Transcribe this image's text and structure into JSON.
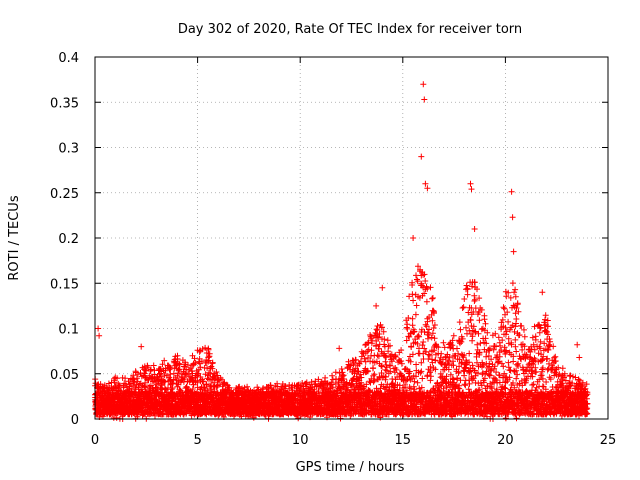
{
  "chart_data": {
    "type": "scatter",
    "title": "Day 302 of 2020, Rate Of TEC Index for receiver torn",
    "xlabel": "GPS time / hours",
    "ylabel": "ROTI / TECUs",
    "xlim": [
      0,
      25
    ],
    "ylim": [
      0,
      0.4
    ],
    "xticks": [
      0,
      5,
      10,
      15,
      20,
      25
    ],
    "xtick_labels": [
      "0",
      "5",
      "10",
      "15",
      "20",
      "25"
    ],
    "yticks": [
      0,
      0.05,
      0.1,
      0.15,
      0.2,
      0.25,
      0.3,
      0.35,
      0.4
    ],
    "ytick_labels": [
      "0",
      "0.05",
      "0.1",
      "0.15",
      "0.2",
      "0.25",
      "0.3",
      "0.35",
      "0.4"
    ],
    "grid": true,
    "marker": "+",
    "series_color": "#ff0000",
    "x_range_hours": [
      0,
      24
    ],
    "baseline_band": [
      0.005,
      0.03
    ],
    "notable_points": [
      {
        "x": 0.15,
        "y": 0.1
      },
      {
        "x": 0.2,
        "y": 0.092
      },
      {
        "x": 2.25,
        "y": 0.08
      },
      {
        "x": 5.0,
        "y": 0.076
      },
      {
        "x": 11.9,
        "y": 0.078
      },
      {
        "x": 13.7,
        "y": 0.125
      },
      {
        "x": 14.0,
        "y": 0.145
      },
      {
        "x": 15.5,
        "y": 0.2
      },
      {
        "x": 15.9,
        "y": 0.29
      },
      {
        "x": 16.0,
        "y": 0.37
      },
      {
        "x": 16.05,
        "y": 0.353
      },
      {
        "x": 16.1,
        "y": 0.26
      },
      {
        "x": 16.2,
        "y": 0.255
      },
      {
        "x": 18.3,
        "y": 0.26
      },
      {
        "x": 18.35,
        "y": 0.254
      },
      {
        "x": 18.5,
        "y": 0.21
      },
      {
        "x": 20.3,
        "y": 0.251
      },
      {
        "x": 20.35,
        "y": 0.223
      },
      {
        "x": 20.4,
        "y": 0.185
      },
      {
        "x": 21.8,
        "y": 0.14
      },
      {
        "x": 23.5,
        "y": 0.082
      },
      {
        "x": 23.6,
        "y": 0.068
      }
    ],
    "envelope": [
      [
        0.0,
        0.04
      ],
      [
        0.5,
        0.035
      ],
      [
        1.0,
        0.045
      ],
      [
        1.5,
        0.04
      ],
      [
        2.0,
        0.05
      ],
      [
        2.5,
        0.055
      ],
      [
        3.0,
        0.055
      ],
      [
        3.5,
        0.065
      ],
      [
        4.0,
        0.065
      ],
      [
        4.5,
        0.06
      ],
      [
        5.0,
        0.07
      ],
      [
        5.5,
        0.075
      ],
      [
        6.0,
        0.045
      ],
      [
        6.5,
        0.035
      ],
      [
        7.0,
        0.032
      ],
      [
        8.0,
        0.03
      ],
      [
        9.0,
        0.035
      ],
      [
        10.0,
        0.035
      ],
      [
        11.0,
        0.04
      ],
      [
        11.5,
        0.045
      ],
      [
        12.0,
        0.055
      ],
      [
        12.5,
        0.06
      ],
      [
        13.0,
        0.07
      ],
      [
        13.5,
        0.1
      ],
      [
        14.0,
        0.1
      ],
      [
        14.5,
        0.07
      ],
      [
        15.0,
        0.08
      ],
      [
        15.3,
        0.14
      ],
      [
        15.6,
        0.17
      ],
      [
        16.0,
        0.17
      ],
      [
        16.4,
        0.14
      ],
      [
        16.8,
        0.08
      ],
      [
        17.2,
        0.08
      ],
      [
        17.6,
        0.09
      ],
      [
        18.0,
        0.14
      ],
      [
        18.4,
        0.16
      ],
      [
        18.8,
        0.14
      ],
      [
        19.2,
        0.09
      ],
      [
        19.6,
        0.09
      ],
      [
        20.0,
        0.14
      ],
      [
        20.4,
        0.15
      ],
      [
        20.8,
        0.1
      ],
      [
        21.2,
        0.08
      ],
      [
        21.6,
        0.12
      ],
      [
        22.0,
        0.11
      ],
      [
        22.5,
        0.06
      ],
      [
        23.0,
        0.045
      ],
      [
        23.5,
        0.04
      ],
      [
        24.0,
        0.035
      ]
    ]
  }
}
